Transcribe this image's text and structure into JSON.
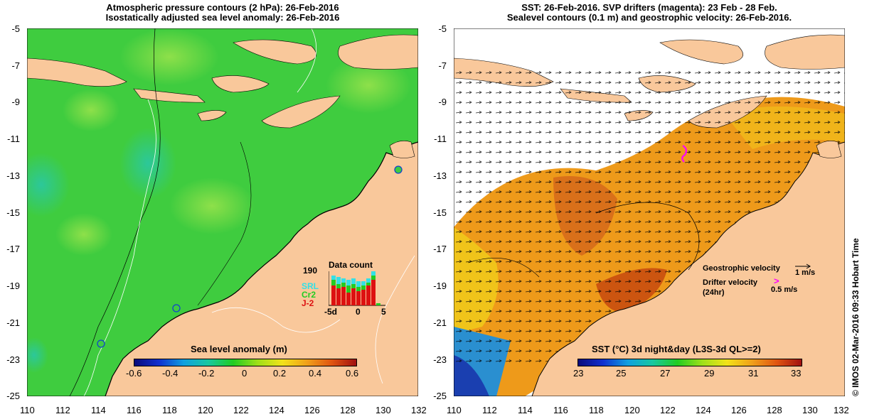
{
  "left_panel": {
    "title_line1": "Atmospheric pressure contours (2 hPa): 26-Feb-2016",
    "title_line2": "Isostatically adjusted sea level anomaly: 26-Feb-2016",
    "y_ticks": [
      "-5",
      "-7",
      "-9",
      "-11",
      "-13",
      "-15",
      "-17",
      "-19",
      "-21",
      "-23",
      "-25"
    ],
    "x_ticks": [
      "110",
      "112",
      "114",
      "116",
      "118",
      "120",
      "122",
      "124",
      "126",
      "128",
      "130",
      "132"
    ],
    "colorbar": {
      "title": "Sea level anomaly (m)",
      "ticks": [
        "-0.6",
        "-0.4",
        "-0.2",
        "0",
        "0.2",
        "0.4",
        "0.6"
      ]
    },
    "inset": {
      "title": "Data count",
      "max_label": "190",
      "legend": [
        {
          "label": "SRL",
          "color": "#33e0e6"
        },
        {
          "label": "Cr2",
          "color": "#22cc22"
        },
        {
          "label": "J-2",
          "color": "#dd1111"
        }
      ],
      "x_ticks": [
        "-5d",
        "0",
        "5"
      ]
    }
  },
  "right_panel": {
    "title_line1": "SST: 26-Feb-2016. SVP drifters (magenta): 23 Feb - 28 Feb.",
    "title_line2": "Sealevel contours (0.1 m) and geostrophic velocity: 26-Feb-2016.",
    "y_ticks": [
      "-5",
      "-7",
      "-9",
      "-11",
      "-13",
      "-15",
      "-17",
      "-19",
      "-21",
      "-23",
      "-25"
    ],
    "x_ticks": [
      "110",
      "112",
      "114",
      "116",
      "118",
      "120",
      "122",
      "124",
      "126",
      "128",
      "130",
      "132"
    ],
    "colorbar": {
      "title": "SST (°C) 3d night&day (L3S-3d QL>=2)",
      "ticks": [
        "23",
        "25",
        "27",
        "29",
        "31",
        "33"
      ]
    },
    "legend": {
      "geostrophic_label": "Geostrophic velocity",
      "geostrophic_scale": "1 m/s",
      "drifter_label": "Drifter velocity",
      "drifter_sub": "(24hr)",
      "drifter_scale": "0.5 m/s"
    }
  },
  "copyright": "© IMOS 02-Mar-2016 09:33 Hobart Time",
  "colors": {
    "land": "#f9c89b",
    "ocean_green": "#3fcc3f",
    "sst_orange": "#ee9a1a",
    "drifter": "#ff00ff"
  }
}
